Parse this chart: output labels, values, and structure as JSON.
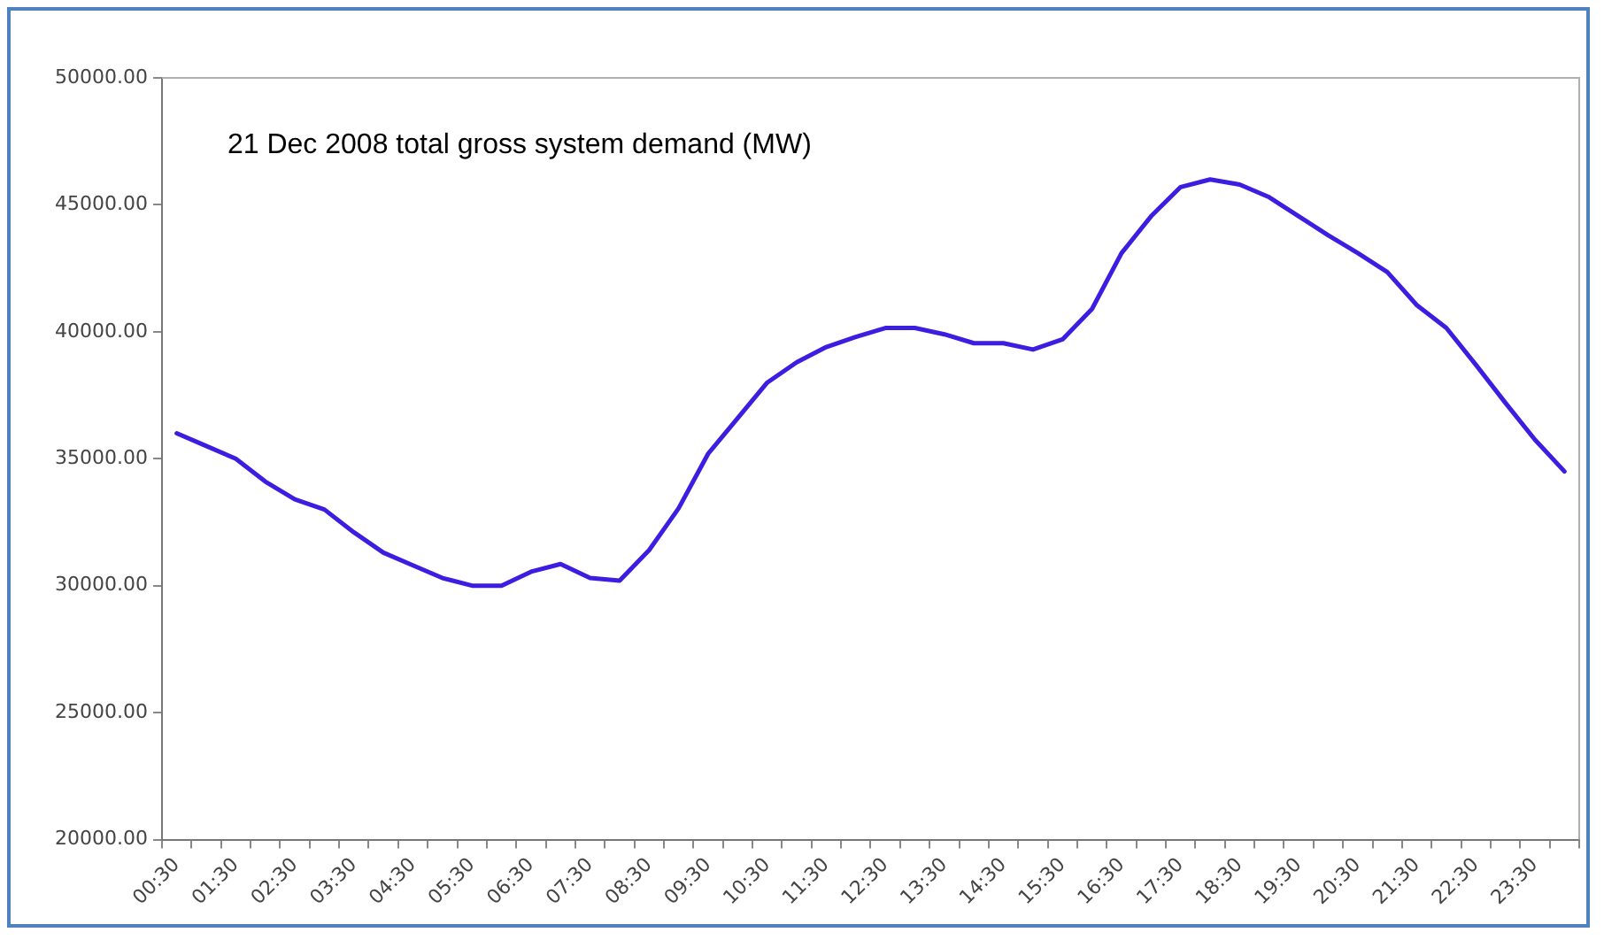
{
  "chart_data": {
    "type": "line",
    "title": "21 Dec 2008 total gross system demand (MW)",
    "categories": [
      "00:30",
      null,
      "01:30",
      null,
      "02:30",
      null,
      "03:30",
      null,
      "04:30",
      null,
      "05:30",
      null,
      "06:30",
      null,
      "07:30",
      null,
      "08:30",
      null,
      "09:30",
      null,
      "10:30",
      null,
      "11:30",
      null,
      "12:30",
      null,
      "13:30",
      null,
      "14:30",
      null,
      "15:30",
      null,
      "16:30",
      null,
      "17:30",
      null,
      "18:30",
      null,
      "19:30",
      null,
      "20:30",
      null,
      "21:30",
      null,
      "22:30",
      null,
      "23:30",
      null
    ],
    "series": [
      {
        "color": "#3b1ee0",
        "values": [
          36000,
          35500,
          35000,
          34100,
          33400,
          33000,
          32100,
          31300,
          30800,
          30300,
          30000,
          30000,
          30550,
          30850,
          30300,
          30200,
          31400,
          33050,
          35200,
          36600,
          38000,
          38800,
          39400,
          39800,
          40150,
          40150,
          39900,
          39550,
          39550,
          39300,
          39700,
          40900,
          43100,
          44550,
          45700,
          46000,
          45800,
          45300,
          44550,
          43800,
          43100,
          42350,
          41050,
          40150,
          38700,
          37200,
          35750,
          34500
        ]
      }
    ],
    "ylim": [
      20000,
      50000
    ],
    "yticks": [
      {
        "value": 20000,
        "label": "20000.00"
      },
      {
        "value": 25000,
        "label": "25000.00"
      },
      {
        "value": 30000,
        "label": "30000.00"
      },
      {
        "value": 35000,
        "label": "35000.00"
      },
      {
        "value": 40000,
        "label": "40000.00"
      },
      {
        "value": 45000,
        "label": "45000.00"
      },
      {
        "value": 50000,
        "label": "50000.00"
      }
    ],
    "grid": false,
    "legend": false,
    "marker": "none",
    "line_style": "solid"
  }
}
